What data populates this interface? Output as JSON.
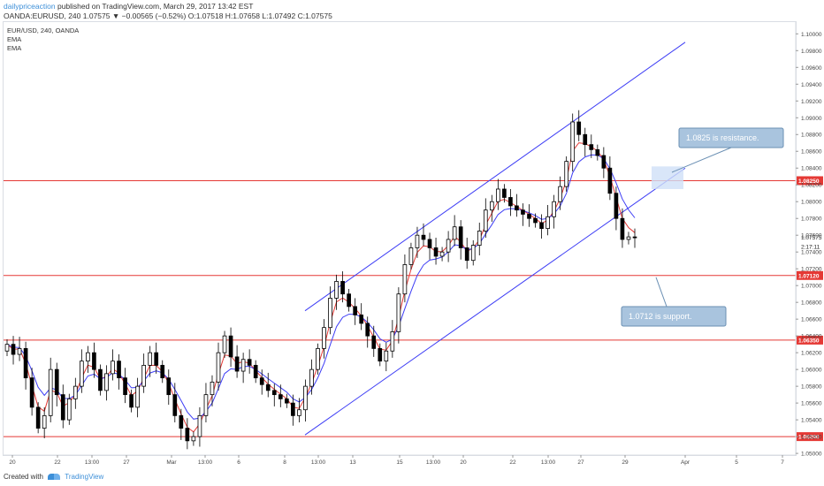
{
  "header": {
    "author": "dailypriceaction",
    "published": "published on TradingView.com, March 29, 2017 13:42 EST",
    "ohlc_line": "OANDA:EURUSD, 240  1.07575 ▼ −0.00565 (−0.52%) O:1.07518 H:1.07658 L:1.07492 C:1.07575"
  },
  "legend": {
    "symbol": "EUR/USD, 240, OANDA",
    "ema1": "EMA",
    "ema2": "EMA"
  },
  "footer": {
    "created_with": "Created with",
    "brand": "TradingView"
  },
  "annotations": {
    "resistance": "1.0825 is resistance.",
    "support": "1.0712 is support."
  },
  "colors": {
    "candle": "#000000",
    "ema_fast": "#e53935",
    "ema_slow": "#3d3df5",
    "channel": "#3d3df5",
    "level_line": "#e53935",
    "callout_fill": "#a9c4de",
    "callout_border": "#6a8fb3"
  },
  "chart_data": {
    "type": "candlestick",
    "symbol": "EUR/USD",
    "timeframe": "240",
    "y_range": [
      1.0498,
      1.1014
    ],
    "y_ticks": [
      "1.10000",
      "1.09800",
      "1.09600",
      "1.09400",
      "1.09200",
      "1.09000",
      "1.08800",
      "1.08600",
      "1.08400",
      "1.08200",
      "1.08000",
      "1.07800",
      "1.07600",
      "1.07400",
      "1.07200",
      "1.07000",
      "1.06800",
      "1.06600",
      "1.06400",
      "1.06200",
      "1.06000",
      "1.05800",
      "1.05600",
      "1.05400",
      "1.05200",
      "1.05000"
    ],
    "x_ticks": [
      "20",
      "22",
      "13:00",
      "27",
      "Mar",
      "13:00",
      "6",
      "8",
      "13:00",
      "13",
      "15",
      "13:00",
      "20",
      "22",
      "13:00",
      "27",
      "29",
      "Apr",
      "5",
      "7"
    ],
    "levels": [
      {
        "value": 1.0825,
        "label": "1.08250"
      },
      {
        "value": 1.0712,
        "label": "1.07120"
      },
      {
        "value": 1.0635,
        "label": "1.06350"
      },
      {
        "value": 1.052,
        "label": "1.05200"
      }
    ],
    "current_price": {
      "value": 1.07575,
      "label": "1.07575",
      "countdown": "2:17:11"
    },
    "channel": {
      "upper": [
        {
          "x": "Mar 9",
          "y": 1.067
        },
        {
          "x": "Apr 3",
          "y": 1.099
        }
      ],
      "lower": [
        {
          "x": "Mar 9",
          "y": 1.0522
        },
        {
          "x": "Apr 3",
          "y": 1.084
        }
      ]
    },
    "close_series": [
      1.063,
      1.0618,
      1.0625,
      1.059,
      1.0555,
      1.053,
      1.0545,
      1.06,
      1.057,
      1.054,
      1.0565,
      1.058,
      1.061,
      1.062,
      1.06,
      1.0575,
      1.0595,
      1.061,
      1.059,
      1.057,
      1.0555,
      1.058,
      1.0605,
      1.062,
      1.0605,
      1.059,
      1.057,
      1.0545,
      1.053,
      1.0515,
      1.052,
      1.0545,
      1.057,
      1.0585,
      1.062,
      1.064,
      1.0615,
      1.0598,
      1.0612,
      1.0605,
      1.059,
      1.0582,
      1.0575,
      1.057,
      1.0565,
      1.056,
      1.0545,
      1.0552,
      1.058,
      1.06,
      1.0625,
      1.065,
      1.0685,
      1.0705,
      1.069,
      1.0675,
      1.0665,
      1.0655,
      1.064,
      1.0625,
      1.061,
      1.0622,
      1.0645,
      1.069,
      1.0725,
      1.0745,
      1.076,
      1.0755,
      1.0745,
      1.0735,
      1.074,
      1.0755,
      1.077,
      1.0745,
      1.073,
      1.0748,
      1.0765,
      1.079,
      1.08,
      1.0815,
      1.0805,
      1.0795,
      1.079,
      1.0785,
      1.078,
      1.0775,
      1.0768,
      1.0782,
      1.08,
      1.0818,
      1.0848,
      1.0895,
      1.088,
      1.0868,
      1.0862,
      1.0855,
      1.084,
      1.081,
      1.078,
      1.0755,
      1.0758,
      1.0757
    ]
  }
}
